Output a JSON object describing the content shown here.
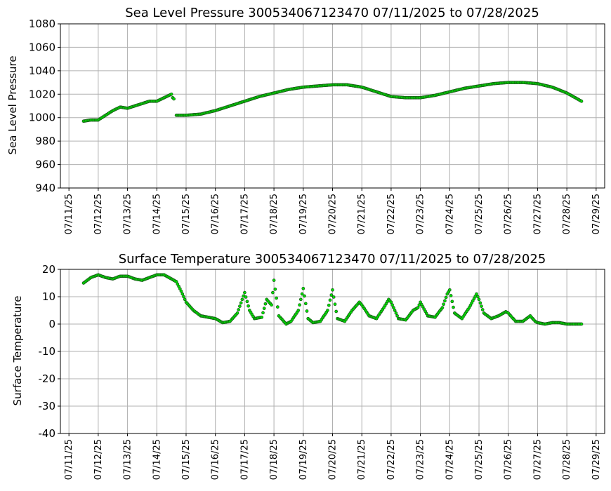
{
  "chart_data": [
    {
      "type": "scatter",
      "title": "Sea Level Pressure 300534067123470  07/11/2025 to 07/28/2025",
      "ylabel": "Sea Level Pressure",
      "ylim": [
        940,
        1080
      ],
      "yticks": [
        940,
        960,
        980,
        1000,
        1020,
        1040,
        1060,
        1080
      ],
      "xlim": [
        "07/10/2025 17:00",
        "07/29/2025 07:00"
      ],
      "xticks": [
        "07/11/25",
        "07/12/25",
        "07/13/25",
        "07/14/25",
        "07/15/25",
        "07/16/25",
        "07/17/25",
        "07/18/25",
        "07/19/25",
        "07/20/25",
        "07/21/25",
        "07/22/25",
        "07/23/25",
        "07/24/25",
        "07/25/25",
        "07/26/25",
        "07/27/25",
        "07/28/25",
        "07/29/25"
      ],
      "grid": true,
      "marker_color": "#00e000",
      "marker_edge": "#1a4d1a",
      "series": [
        {
          "x": [
            "07/11/2025 12:00",
            "07/11/2025 18:00",
            "07/12/2025 00:00",
            "07/12/2025 06:00",
            "07/12/2025 12:00",
            "07/12/2025 18:00",
            "07/13/2025 00:00",
            "07/13/2025 06:00",
            "07/13/2025 12:00",
            "07/13/2025 18:00",
            "07/14/2025 00:00",
            "07/14/2025 06:00",
            "07/14/2025 12:00",
            "07/14/2025 13:00",
            "07/14/2025 14:00"
          ],
          "y": [
            997,
            998,
            998,
            1002,
            1006,
            1009,
            1008,
            1010,
            1012,
            1014,
            1014,
            1017,
            1020,
            1017,
            1016
          ]
        },
        {
          "x": [
            "07/14/2025 16:00",
            "07/15/2025 00:00",
            "07/15/2025 12:00",
            "07/16/2025 00:00",
            "07/16/2025 12:00",
            "07/17/2025 00:00",
            "07/17/2025 12:00",
            "07/18/2025 00:00",
            "07/18/2025 12:00",
            "07/19/2025 00:00",
            "07/19/2025 12:00",
            "07/20/2025 00:00",
            "07/20/2025 12:00",
            "07/21/2025 00:00",
            "07/21/2025 12:00",
            "07/22/2025 00:00",
            "07/22/2025 12:00",
            "07/23/2025 00:00",
            "07/23/2025 12:00",
            "07/24/2025 00:00",
            "07/24/2025 12:00",
            "07/25/2025 00:00",
            "07/25/2025 12:00",
            "07/26/2025 00:00",
            "07/26/2025 12:00",
            "07/27/2025 00:00",
            "07/27/2025 12:00",
            "07/28/2025 00:00",
            "07/28/2025 12:00"
          ],
          "y": [
            1002,
            1002,
            1003,
            1006,
            1010,
            1014,
            1018,
            1021,
            1024,
            1026,
            1027,
            1028,
            1028,
            1026,
            1022,
            1018,
            1017,
            1017,
            1019,
            1022,
            1025,
            1027,
            1029,
            1030,
            1030,
            1029,
            1026,
            1021,
            1014
          ]
        }
      ]
    },
    {
      "type": "scatter",
      "title": "Surface Temperature 300534067123470  07/11/2025 to 07/28/2025",
      "ylabel": "Surface Temperature",
      "ylim": [
        -40,
        20
      ],
      "yticks": [
        -40,
        -30,
        -20,
        -10,
        0,
        10,
        20
      ],
      "xlim": [
        "07/10/2025 17:00",
        "07/29/2025 07:00"
      ],
      "xticks": [
        "07/11/25",
        "07/12/25",
        "07/13/25",
        "07/14/25",
        "07/15/25",
        "07/16/25",
        "07/17/25",
        "07/18/25",
        "07/19/25",
        "07/20/25",
        "07/21/25",
        "07/22/25",
        "07/23/25",
        "07/24/25",
        "07/25/25",
        "07/26/25",
        "07/27/25",
        "07/28/25",
        "07/29/25"
      ],
      "grid": true,
      "marker_color": "#00e000",
      "marker_edge": "#1a4d1a",
      "series": [
        {
          "x": [
            "07/11/2025 12:00",
            "07/11/2025 18:00",
            "07/12/2025 00:00",
            "07/12/2025 06:00",
            "07/12/2025 12:00",
            "07/12/2025 18:00",
            "07/13/2025 00:00",
            "07/13/2025 06:00",
            "07/13/2025 12:00",
            "07/13/2025 18:00",
            "07/14/2025 00:00",
            "07/14/2025 06:00",
            "07/14/2025 12:00",
            "07/14/2025 16:00",
            "07/14/2025 20:00",
            "07/15/2025 00:00",
            "07/15/2025 06:00",
            "07/15/2025 12:00",
            "07/15/2025 18:00",
            "07/16/2025 00:00",
            "07/16/2025 06:00",
            "07/16/2025 12:00",
            "07/16/2025 18:00",
            "07/17/2025 00:00",
            "07/17/2025 04:00",
            "07/17/2025 08:00",
            "07/17/2025 14:00",
            "07/17/2025 18:00",
            "07/17/2025 22:00",
            "07/18/2025 00:00",
            "07/18/2025 04:00",
            "07/18/2025 10:00",
            "07/18/2025 14:00",
            "07/18/2025 20:00",
            "07/19/2025 00:00",
            "07/19/2025 04:00",
            "07/19/2025 08:00",
            "07/19/2025 14:00",
            "07/19/2025 20:00",
            "07/20/2025 00:00",
            "07/20/2025 04:00",
            "07/20/2025 10:00",
            "07/20/2025 16:00",
            "07/20/2025 22:00",
            "07/21/2025 00:00",
            "07/21/2025 06:00",
            "07/21/2025 12:00",
            "07/21/2025 18:00",
            "07/21/2025 22:00",
            "07/22/2025 00:00",
            "07/22/2025 06:00",
            "07/22/2025 12:00",
            "07/22/2025 18:00",
            "07/22/2025 22:00",
            "07/23/2025 00:00",
            "07/23/2025 06:00",
            "07/23/2025 12:00",
            "07/23/2025 18:00",
            "07/23/2025 22:00",
            "07/24/2025 00:00",
            "07/24/2025 04:00",
            "07/24/2025 10:00",
            "07/24/2025 16:00",
            "07/24/2025 22:00",
            "07/25/2025 00:00",
            "07/25/2025 04:00",
            "07/25/2025 10:00",
            "07/25/2025 16:00",
            "07/25/2025 22:00",
            "07/26/2025 00:00",
            "07/26/2025 06:00",
            "07/26/2025 12:00",
            "07/26/2025 18:00",
            "07/26/2025 22:00",
            "07/27/2025 00:00",
            "07/27/2025 06:00",
            "07/27/2025 12:00",
            "07/27/2025 18:00",
            "07/28/2025 00:00",
            "07/28/2025 06:00",
            "07/28/2025 12:00"
          ],
          "y": [
            15,
            17,
            18,
            17,
            16.5,
            17.5,
            17.5,
            16.5,
            16,
            17,
            18,
            18,
            16.5,
            15.5,
            12,
            8,
            5,
            3,
            2.5,
            2,
            0.5,
            1,
            4,
            11.5,
            5,
            2,
            2.5,
            9,
            7,
            16,
            3,
            0,
            1,
            5,
            13,
            2,
            0.5,
            1,
            5,
            12.5,
            2,
            1,
            5,
            8,
            7,
            3,
            2,
            6,
            9,
            8,
            2,
            1.5,
            5,
            6,
            8,
            3,
            2.5,
            6,
            11,
            12.5,
            4,
            2,
            6,
            11,
            9,
            4,
            2,
            3,
            4.5,
            4,
            1,
            1,
            3,
            1,
            0.5,
            0,
            0.5,
            0.5,
            0,
            0,
            0
          ]
        }
      ]
    }
  ]
}
